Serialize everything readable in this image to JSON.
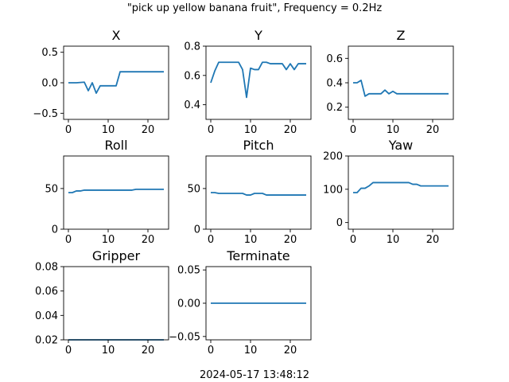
{
  "figure": {
    "suptitle": "\"pick up yellow banana fruit\", Frequency = 0.2Hz",
    "footer": "2024-05-17 13:48:12"
  },
  "chart_data": [
    {
      "type": "line",
      "title": "X",
      "xlim": [
        -1.2,
        25.2
      ],
      "ylim": [
        -0.6,
        0.6
      ],
      "xticks": [
        0,
        10,
        20
      ],
      "yticks": [
        -0.5,
        0.0,
        0.5
      ],
      "ytick_labels": [
        "−0.5",
        "0.0",
        "0.5"
      ],
      "x": [
        0,
        1,
        2,
        3,
        4,
        5,
        6,
        7,
        8,
        9,
        10,
        11,
        12,
        13,
        14,
        15,
        16,
        17,
        18,
        19,
        20,
        21,
        22,
        23,
        24
      ],
      "values": [
        0.0,
        0.0,
        0.0,
        0.005,
        0.01,
        -0.13,
        0.0,
        -0.17,
        -0.05,
        -0.05,
        -0.05,
        -0.05,
        -0.05,
        0.18,
        0.18,
        0.18,
        0.18,
        0.18,
        0.18,
        0.18,
        0.18,
        0.18,
        0.18,
        0.18,
        0.18
      ]
    },
    {
      "type": "line",
      "title": "Y",
      "xlim": [
        -1.2,
        25.2
      ],
      "ylim": [
        0.3,
        0.8
      ],
      "xticks": [
        0,
        10,
        20
      ],
      "yticks": [
        0.4,
        0.6,
        0.8
      ],
      "ytick_labels": [
        "0.4",
        "0.6",
        "0.8"
      ],
      "x": [
        0,
        1,
        2,
        3,
        4,
        5,
        6,
        7,
        8,
        9,
        10,
        11,
        12,
        13,
        14,
        15,
        16,
        17,
        18,
        19,
        20,
        21,
        22,
        23,
        24
      ],
      "values": [
        0.55,
        0.63,
        0.69,
        0.69,
        0.69,
        0.69,
        0.69,
        0.69,
        0.64,
        0.45,
        0.65,
        0.64,
        0.64,
        0.69,
        0.69,
        0.68,
        0.68,
        0.68,
        0.68,
        0.64,
        0.68,
        0.64,
        0.68,
        0.68,
        0.68
      ]
    },
    {
      "type": "line",
      "title": "Z",
      "xlim": [
        -1.2,
        25.2
      ],
      "ylim": [
        0.1,
        0.7
      ],
      "xticks": [
        0,
        10,
        20
      ],
      "yticks": [
        0.2,
        0.4,
        0.6
      ],
      "ytick_labels": [
        "0.2",
        "0.4",
        "0.6"
      ],
      "x": [
        0,
        1,
        2,
        3,
        4,
        5,
        6,
        7,
        8,
        9,
        10,
        11,
        12,
        13,
        14,
        15,
        16,
        17,
        18,
        19,
        20,
        21,
        22,
        23,
        24
      ],
      "values": [
        0.4,
        0.4,
        0.42,
        0.29,
        0.31,
        0.31,
        0.31,
        0.31,
        0.34,
        0.31,
        0.33,
        0.31,
        0.31,
        0.31,
        0.31,
        0.31,
        0.31,
        0.31,
        0.31,
        0.31,
        0.31,
        0.31,
        0.31,
        0.31,
        0.31
      ]
    },
    {
      "type": "line",
      "title": "Roll",
      "xlim": [
        -1.2,
        25.2
      ],
      "ylim": [
        0,
        90
      ],
      "xticks": [
        0,
        10,
        20
      ],
      "yticks": [
        0,
        50
      ],
      "ytick_labels": [
        "0",
        "50"
      ],
      "x": [
        0,
        1,
        2,
        3,
        4,
        5,
        6,
        7,
        8,
        9,
        10,
        11,
        12,
        13,
        14,
        15,
        16,
        17,
        18,
        19,
        20,
        21,
        22,
        23,
        24
      ],
      "values": [
        45,
        45,
        47,
        47,
        48,
        48,
        48,
        48,
        48,
        48,
        48,
        48,
        48,
        48,
        48,
        48,
        48,
        49,
        49,
        49,
        49,
        49,
        49,
        49,
        49
      ]
    },
    {
      "type": "line",
      "title": "Pitch",
      "xlim": [
        -1.2,
        25.2
      ],
      "ylim": [
        0,
        90
      ],
      "xticks": [
        0,
        10,
        20
      ],
      "yticks": [
        0,
        50
      ],
      "ytick_labels": [
        "0",
        "50"
      ],
      "x": [
        0,
        1,
        2,
        3,
        4,
        5,
        6,
        7,
        8,
        9,
        10,
        11,
        12,
        13,
        14,
        15,
        16,
        17,
        18,
        19,
        20,
        21,
        22,
        23,
        24
      ],
      "values": [
        45,
        45,
        44,
        44,
        44,
        44,
        44,
        44,
        44,
        42,
        42,
        44,
        44,
        44,
        42,
        42,
        42,
        42,
        42,
        42,
        42,
        42,
        42,
        42,
        42
      ]
    },
    {
      "type": "line",
      "title": "Yaw",
      "xlim": [
        -1.2,
        25.2
      ],
      "ylim": [
        -20,
        200
      ],
      "xticks": [
        0,
        10,
        20
      ],
      "yticks": [
        0,
        100,
        200
      ],
      "ytick_labels": [
        "0",
        "100",
        "200"
      ],
      "x": [
        0,
        1,
        2,
        3,
        4,
        5,
        6,
        7,
        8,
        9,
        10,
        11,
        12,
        13,
        14,
        15,
        16,
        17,
        18,
        19,
        20,
        21,
        22,
        23,
        24
      ],
      "values": [
        90,
        90,
        103,
        103,
        110,
        120,
        120,
        120,
        120,
        120,
        120,
        120,
        120,
        120,
        120,
        115,
        115,
        110,
        110,
        110,
        110,
        110,
        110,
        110,
        110
      ]
    },
    {
      "type": "line",
      "title": "Gripper",
      "xlim": [
        -1.2,
        25.2
      ],
      "ylim": [
        0.02,
        0.08
      ],
      "xticks": [
        0,
        10,
        20
      ],
      "yticks": [
        0.02,
        0.04,
        0.06,
        0.08
      ],
      "ytick_labels": [
        "0.02",
        "0.04",
        "0.06",
        "0.08"
      ],
      "x": [
        0,
        1,
        2,
        3,
        4,
        5,
        6,
        7,
        8,
        9,
        10,
        11,
        12,
        13,
        14,
        15,
        16,
        17,
        18,
        19,
        20,
        21,
        22,
        23,
        24
      ],
      "values": [
        0.02,
        0.02,
        0.02,
        0.02,
        0.02,
        0.02,
        0.02,
        0.02,
        0.02,
        0.02,
        0.02,
        0.02,
        0.02,
        0.02,
        0.02,
        0.02,
        0.02,
        0.02,
        0.02,
        0.02,
        0.02,
        0.02,
        0.02,
        0.02,
        0.02
      ]
    },
    {
      "type": "line",
      "title": "Terminate",
      "xlim": [
        -1.2,
        25.2
      ],
      "ylim": [
        -0.055,
        0.055
      ],
      "xticks": [
        0,
        10,
        20
      ],
      "yticks": [
        -0.05,
        0.0,
        0.05
      ],
      "ytick_labels": [
        "−0.05",
        "0.00",
        "0.05"
      ],
      "x": [
        0,
        1,
        2,
        3,
        4,
        5,
        6,
        7,
        8,
        9,
        10,
        11,
        12,
        13,
        14,
        15,
        16,
        17,
        18,
        19,
        20,
        21,
        22,
        23,
        24
      ],
      "values": [
        0,
        0,
        0,
        0,
        0,
        0,
        0,
        0,
        0,
        0,
        0,
        0,
        0,
        0,
        0,
        0,
        0,
        0,
        0,
        0,
        0,
        0,
        0,
        0,
        0
      ]
    }
  ]
}
